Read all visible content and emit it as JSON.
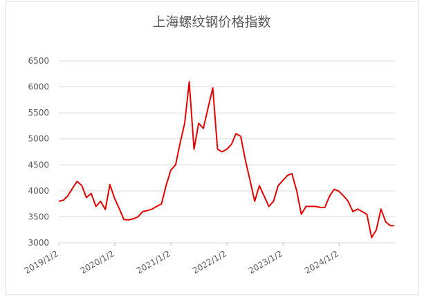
{
  "chart_data": {
    "type": "line",
    "title": "上海螺纹钢价格指数",
    "x": [
      "2019/1/2",
      "2019/2/1",
      "2019/3/1",
      "2019/4/1",
      "2019/5/1",
      "2019/6/1",
      "2019/7/1",
      "2019/8/1",
      "2019/9/1",
      "2019/10/1",
      "2019/11/1",
      "2019/12/1",
      "2020/1/1",
      "2020/2/1",
      "2020/3/1",
      "2020/4/1",
      "2020/5/1",
      "2020/6/1",
      "2020/7/1",
      "2020/8/1",
      "2020/9/1",
      "2020/10/1",
      "2020/11/1",
      "2020/12/1",
      "2021/1/1",
      "2021/2/1",
      "2021/3/1",
      "2021/4/1",
      "2021/5/1",
      "2021/6/1",
      "2021/7/1",
      "2021/8/1",
      "2021/9/1",
      "2021/10/1",
      "2021/11/1",
      "2021/12/1",
      "2022/1/1",
      "2022/2/1",
      "2022/3/1",
      "2022/4/1",
      "2022/5/1",
      "2022/6/1",
      "2022/7/1",
      "2022/8/1",
      "2022/9/1",
      "2022/10/1",
      "2022/11/1",
      "2022/12/1",
      "2023/1/1",
      "2023/2/1",
      "2023/3/1",
      "2023/4/1",
      "2023/5/1",
      "2023/6/1",
      "2023/7/1",
      "2023/8/1",
      "2023/9/1",
      "2023/10/1",
      "2023/11/1",
      "2023/12/1",
      "2024/1/1",
      "2024/2/1",
      "2024/3/1",
      "2024/4/1",
      "2024/5/1",
      "2024/6/1",
      "2024/7/1",
      "2024/8/1",
      "2024/9/1",
      "2024/10/1",
      "2024/11/1",
      "2024/12/1",
      "2024/12/25"
    ],
    "series": [
      {
        "name": "上海螺纹钢价格指数",
        "color": "#e60000",
        "values": [
          3800,
          3820,
          3900,
          4050,
          4180,
          4100,
          3870,
          3950,
          3700,
          3800,
          3640,
          4120,
          3850,
          3650,
          3450,
          3440,
          3460,
          3500,
          3600,
          3620,
          3650,
          3700,
          3750,
          4100,
          4400,
          4500,
          4900,
          5300,
          6100,
          4800,
          5300,
          5200,
          5600,
          5980,
          4800,
          4750,
          4800,
          4900,
          5100,
          5050,
          4600,
          4200,
          3800,
          4100,
          3900,
          3700,
          3800,
          4100,
          4200,
          4300,
          4330,
          4000,
          3550,
          3700,
          3700,
          3700,
          3680,
          3680,
          3900,
          4030,
          3990,
          3900,
          3800,
          3600,
          3650,
          3600,
          3550,
          3100,
          3250,
          3650,
          3400,
          3330,
          3330
        ]
      }
    ],
    "xlim": [
      "2019/1/2",
      "2024/12/31"
    ],
    "xticks": [
      "2019/1/2",
      "2020/1/2",
      "2021/1/2",
      "2022/1/2",
      "2023/1/2",
      "2024/1/2"
    ],
    "ylim": [
      3000,
      6500
    ],
    "yticks": [
      3000,
      3500,
      4000,
      4500,
      5000,
      5500,
      6000,
      6500
    ],
    "grid": true
  }
}
